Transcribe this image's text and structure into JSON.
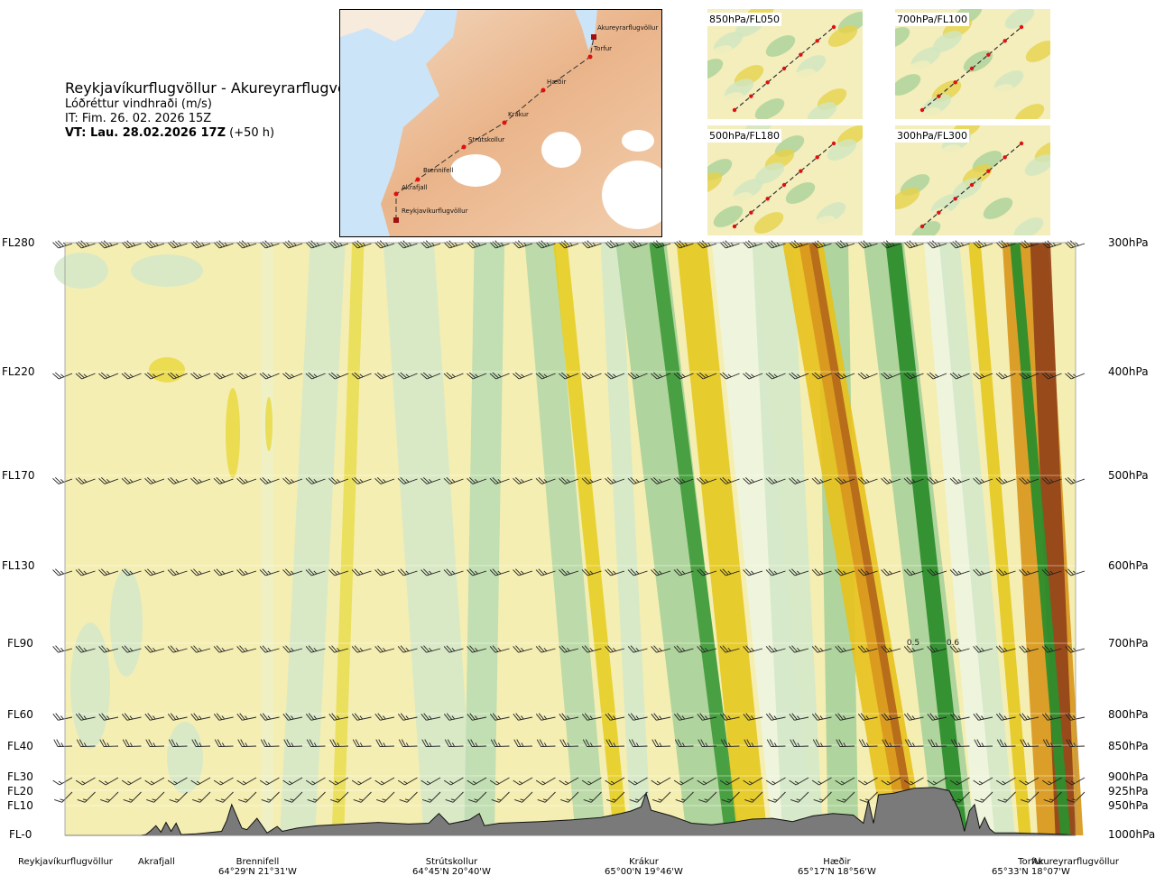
{
  "header": {
    "title": "Reykjavíkurflugvöllur - Akureyrarflugvöllur",
    "subtitle": "Lóðréttur vindhraði (m/s)",
    "it_line": "IT: Fim. 26. 02. 2026 15Z",
    "vt_bold": "VT: Lau. 28.02.2026 17Z",
    "vt_extra": "(+50 h)"
  },
  "map": {
    "waypoints": [
      "Reykjavíkurflugvöllur",
      "Akrafjall",
      "Brennifell",
      "Strútskollur",
      "Krákur",
      "Hæðir",
      "Torfur",
      "Akureyrarflugvöllur"
    ]
  },
  "mini_maps": [
    {
      "label": "850hPa/FL050"
    },
    {
      "label": "700hPa/FL100"
    },
    {
      "label": "500hPa/FL180"
    },
    {
      "label": "300hPa/FL300"
    }
  ],
  "colors": {
    "terrain": "#7a7a7a",
    "water": "#cce4f7",
    "route": "#333333",
    "waypoint": "#e01010"
  },
  "chart_data": {
    "type": "heatmap",
    "title": "Reykjavíkurflugvöllur - Akureyrarflugvöllur",
    "variable": "Lóðréttur vindhraði (m/s)",
    "y_left_ticks": [
      "FL280",
      "FL220",
      "FL170",
      "FL130",
      "FL90",
      "FL60",
      "FL40",
      "FL30",
      "FL20",
      "FL10",
      "FL-0"
    ],
    "y_right_ticks": [
      "300hPa",
      "400hPa",
      "500hPa",
      "600hPa",
      "700hPa",
      "800hPa",
      "850hPa",
      "900hPa",
      "925hPa",
      "950hPa",
      "1000hPa"
    ],
    "x_points": [
      {
        "name": "Reykjavíkurflugvöllur",
        "coords": "",
        "pos": 0.0
      },
      {
        "name": "Akrafjall",
        "coords": "",
        "pos": 0.09
      },
      {
        "name": "Brennifell",
        "coords": "64°29'N 21°31'W",
        "pos": 0.19
      },
      {
        "name": "Strútskollur",
        "coords": "64°45'N 20°40'W",
        "pos": 0.385
      },
      {
        "name": "Krákur",
        "coords": "65°00'N 19°46'W",
        "pos": 0.575
      },
      {
        "name": "Hæðir",
        "coords": "65°17'N 18°56'W",
        "pos": 0.765
      },
      {
        "name": "Torfur",
        "coords": "65°33'N 18°07'W",
        "pos": 0.935
      },
      {
        "name": "Akureyrarflugvöllur",
        "coords": "",
        "pos": 1.0
      }
    ],
    "contour_labels": [
      "0.5",
      "0.6"
    ],
    "grid": true
  }
}
